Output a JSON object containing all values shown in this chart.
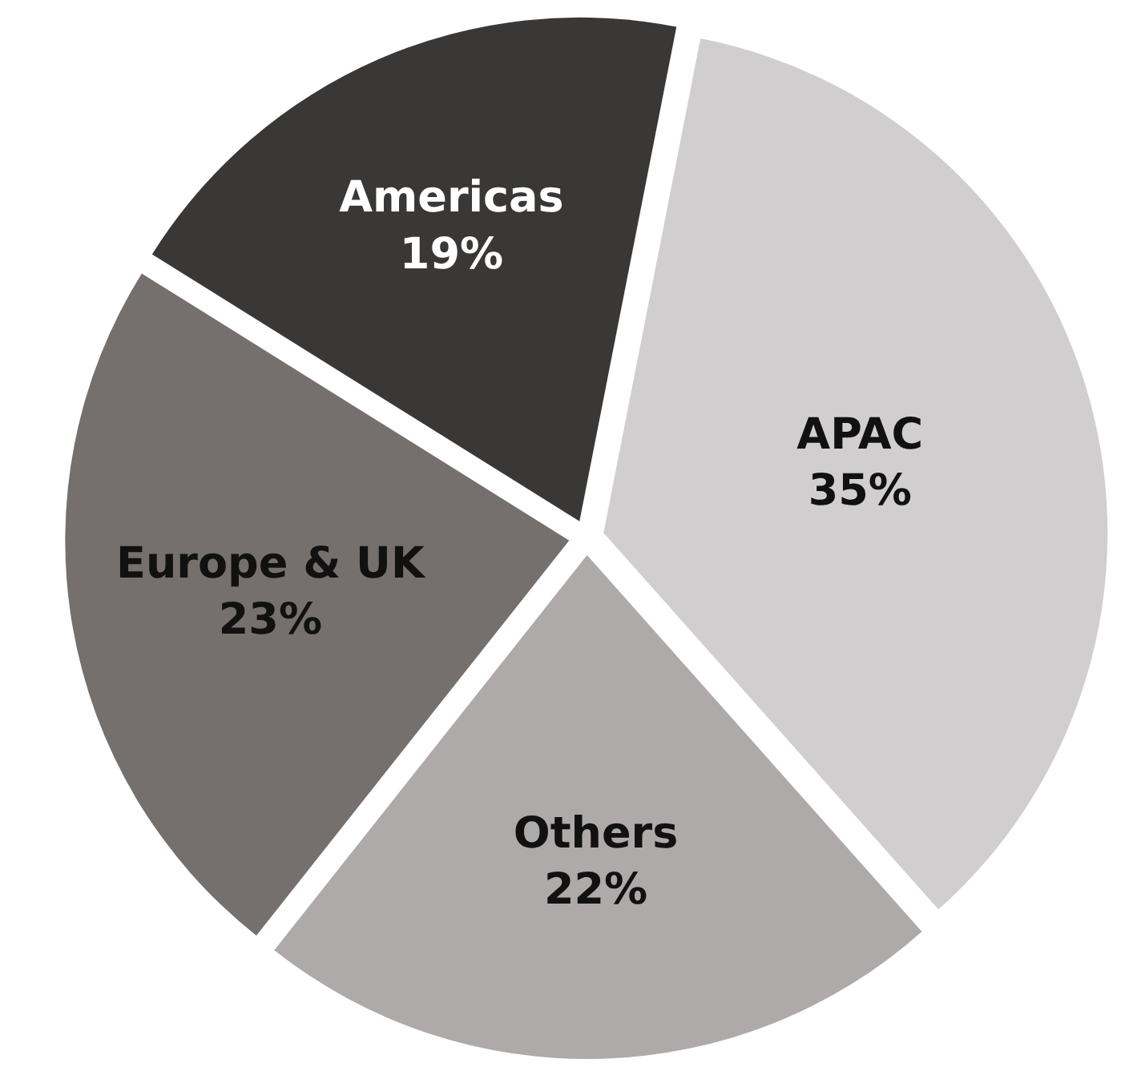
{
  "chart_data": {
    "type": "pie",
    "categories": [
      "Americas",
      "APAC",
      "Others",
      "Europe & UK"
    ],
    "values": [
      19,
      35,
      22,
      23
    ],
    "value_labels": [
      "19%",
      "35%",
      "22%",
      "23%"
    ],
    "colors": [
      "#3a3836",
      "#d0cece",
      "#aeaaa9",
      "#75706e"
    ],
    "legend": false
  }
}
